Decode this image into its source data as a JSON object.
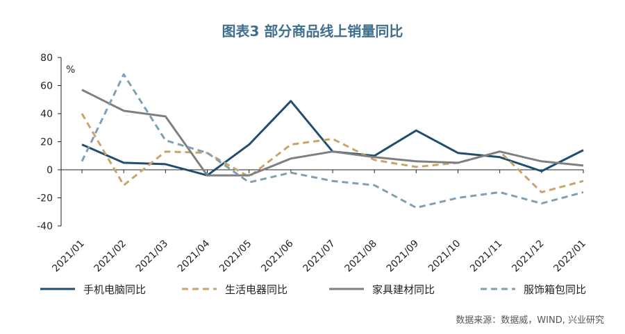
{
  "chart_data": {
    "type": "line",
    "title": "图表3 部分商品线上销量同比",
    "unit": "%",
    "x": [
      "2021/01",
      "2021/02",
      "2021/03",
      "2021/04",
      "2021/05",
      "2021/06",
      "2021/07",
      "2021/08",
      "2021/09",
      "2021/10",
      "2021/11",
      "2021/12",
      "2022/01"
    ],
    "ylim": [
      -40,
      80
    ],
    "yticks": [
      80,
      60,
      40,
      20,
      0,
      -20,
      -40
    ],
    "grid": false,
    "legend_position": "bottom",
    "series": [
      {
        "name": "手机电脑同比",
        "style": "solid",
        "color": "#1f4e6e",
        "values": [
          18,
          5,
          4,
          -4,
          18,
          49,
          13,
          10,
          28,
          12,
          9,
          -1,
          14
        ]
      },
      {
        "name": "生活电器同比",
        "style": "dashed",
        "color": "#c9a36a",
        "values": [
          40,
          -11,
          13,
          12,
          -5,
          18,
          22,
          7,
          2,
          5,
          13,
          -16,
          -8
        ]
      },
      {
        "name": "家具建材同比",
        "style": "solid",
        "color": "#7f7f7f",
        "values": [
          57,
          42,
          38,
          -4,
          -4,
          8,
          13,
          9,
          6,
          5,
          13,
          6,
          3
        ]
      },
      {
        "name": "服饰箱包同比",
        "style": "dashed",
        "color": "#7f9fb3",
        "values": [
          6,
          68,
          21,
          12,
          -9,
          -2,
          -8,
          -11,
          -27,
          -20,
          -16,
          -24,
          -16
        ]
      }
    ],
    "source": "数据来源：数据威，WIND, 兴业研究"
  }
}
